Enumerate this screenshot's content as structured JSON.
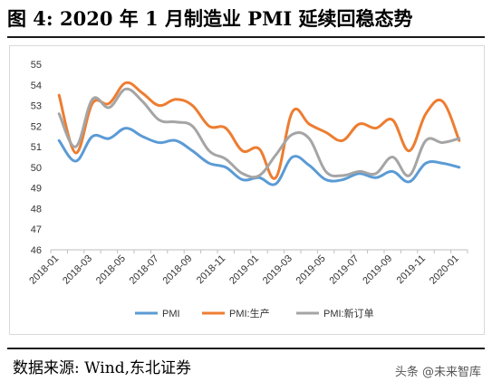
{
  "title": "图  4:  2020 年 1 月制造业 PMI 延续回稳态势",
  "source": "数据来源:  Wind,东北证券",
  "watermark": "头条 @未来智库",
  "chart_data": {
    "type": "line",
    "ylim": [
      46,
      55
    ],
    "yticks": [
      46,
      47,
      48,
      49,
      50,
      51,
      52,
      53,
      54,
      55
    ],
    "xtick_labels": [
      "2018-01",
      "2018-03",
      "2018-05",
      "2018-07",
      "2018-09",
      "2018-11",
      "2019-01",
      "2019-03",
      "2019-05",
      "2019-07",
      "2019-09",
      "2019-11",
      "2020-01"
    ],
    "x": [
      "2018-01",
      "2018-02",
      "2018-03",
      "2018-04",
      "2018-05",
      "2018-06",
      "2018-07",
      "2018-08",
      "2018-09",
      "2018-10",
      "2018-11",
      "2018-12",
      "2019-01",
      "2019-02",
      "2019-03",
      "2019-04",
      "2019-05",
      "2019-06",
      "2019-07",
      "2019-08",
      "2019-09",
      "2019-10",
      "2019-11",
      "2019-12",
      "2020-01"
    ],
    "legend_position": "bottom",
    "grid": false,
    "series": [
      {
        "name": "PMI",
        "color": "#5b9bd5",
        "values": [
          51.3,
          50.3,
          51.5,
          51.4,
          51.9,
          51.5,
          51.2,
          51.3,
          50.8,
          50.2,
          50.0,
          49.4,
          49.5,
          49.2,
          50.5,
          50.1,
          49.4,
          49.4,
          49.7,
          49.5,
          49.8,
          49.3,
          50.2,
          50.2,
          50.0
        ]
      },
      {
        "name": "PMI:生产",
        "color": "#ed7d31",
        "values": [
          53.5,
          50.7,
          53.1,
          53.1,
          54.1,
          53.6,
          53.0,
          53.3,
          53.0,
          52.0,
          51.9,
          50.8,
          50.9,
          49.5,
          52.7,
          52.1,
          51.7,
          51.3,
          52.1,
          51.9,
          52.3,
          50.8,
          52.6,
          53.2,
          51.3
        ]
      },
      {
        "name": "PMI:新订单",
        "color": "#a5a5a5",
        "values": [
          52.6,
          51.0,
          53.3,
          52.9,
          53.8,
          53.2,
          52.3,
          52.2,
          52.0,
          50.8,
          50.4,
          49.7,
          49.6,
          50.6,
          51.6,
          51.4,
          49.8,
          49.6,
          49.8,
          49.7,
          50.5,
          49.6,
          51.3,
          51.2,
          51.4
        ]
      }
    ]
  }
}
